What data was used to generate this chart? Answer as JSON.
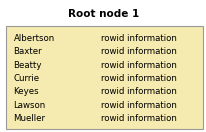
{
  "title": "Root node 1",
  "names": [
    "Albertson",
    "Baxter",
    "Beatty",
    "Currie",
    "Keyes",
    "Lawson",
    "Mueller"
  ],
  "col2": "rowid information",
  "bg_color": "#f5eab0",
  "border_color": "#999999",
  "title_fontsize": 7.5,
  "row_fontsize": 6.2,
  "fig_bg": "#ffffff",
  "fig_w": 2.07,
  "fig_h": 1.32,
  "dpi": 100
}
